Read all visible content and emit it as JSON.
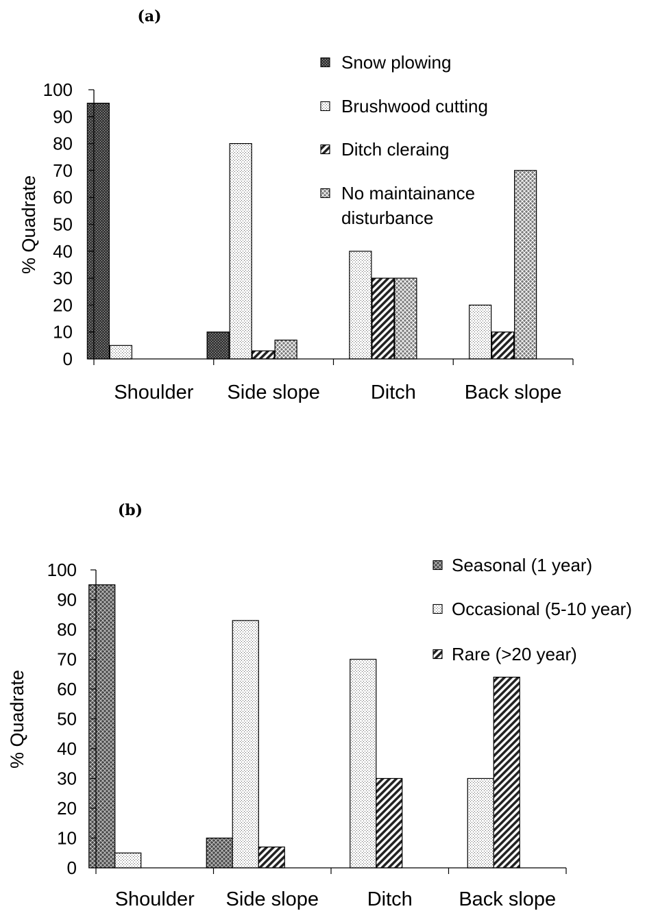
{
  "chart_data": [
    {
      "type": "bar",
      "panel_label": "(a)",
      "categories": [
        "Shoulder",
        "Side slope",
        "Ditch",
        "Back slope"
      ],
      "ylabel": "% Quadrate",
      "ylim": [
        0,
        100
      ],
      "yticks": [
        0,
        10,
        20,
        30,
        40,
        50,
        60,
        70,
        80,
        90,
        100
      ],
      "grid": false,
      "legend_position": "top-right",
      "series": [
        {
          "name": "Snow plowing",
          "values": [
            95,
            10,
            0,
            0
          ],
          "pattern": "dense-dark"
        },
        {
          "name": "Brushwood cutting",
          "values": [
            5,
            80,
            40,
            20
          ],
          "pattern": "dotted-light"
        },
        {
          "name": "Ditch cleraing",
          "values": [
            0,
            3,
            30,
            10
          ],
          "pattern": "diagonal-hatch"
        },
        {
          "name": "No maintainance disturbance",
          "legend_lines": [
            "No maintainance",
            "disturbance"
          ],
          "values": [
            0,
            7,
            30,
            70
          ],
          "pattern": "crosshatch-medium"
        }
      ]
    },
    {
      "type": "bar",
      "panel_label": "(b)",
      "categories": [
        "Shoulder",
        "Side slope",
        "Ditch",
        "Back slope"
      ],
      "ylabel": "% Quadrate",
      "ylim": [
        0,
        100
      ],
      "yticks": [
        0,
        10,
        20,
        30,
        40,
        50,
        60,
        70,
        80,
        90,
        100
      ],
      "grid": false,
      "legend_position": "top-right",
      "series": [
        {
          "name": "Seasonal (1 year)",
          "values": [
            95,
            10,
            0,
            0
          ],
          "pattern": "crosshatch-dark"
        },
        {
          "name": "Occasional (5-10 year)",
          "values": [
            5,
            83,
            70,
            30
          ],
          "pattern": "dotted-light"
        },
        {
          "name": "Rare (>20 year)",
          "values": [
            0,
            7,
            30,
            64
          ],
          "pattern": "diagonal-hatch"
        }
      ]
    }
  ]
}
